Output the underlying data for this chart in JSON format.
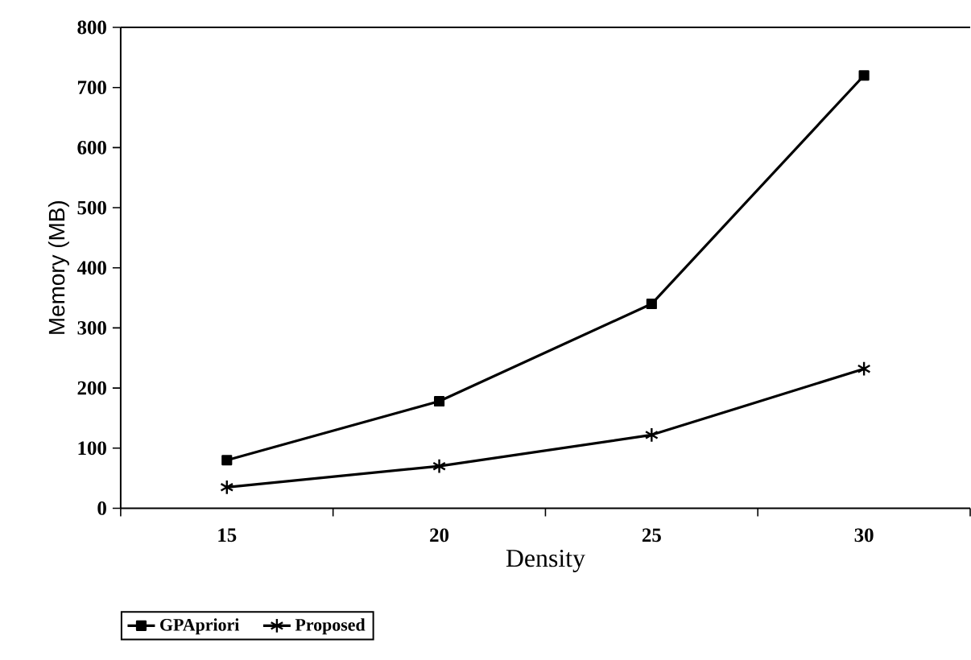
{
  "chart_data": {
    "type": "line",
    "xlabel": "Density",
    "ylabel": "Memory (MB)",
    "categories": [
      "15",
      "20",
      "25",
      "30"
    ],
    "series": [
      {
        "name": "GPApriori",
        "color": "#000000",
        "marker": "square",
        "values": [
          80,
          178,
          340,
          720
        ]
      },
      {
        "name": "Proposed",
        "color": "#000000",
        "marker": "cross",
        "values": [
          35,
          70,
          122,
          232
        ]
      }
    ],
    "ylim": [
      0,
      800
    ],
    "yticks": [
      0,
      100,
      200,
      300,
      400,
      500,
      600,
      700,
      800
    ],
    "grid": false,
    "legend": "bottom left",
    "line_style": "solid"
  }
}
